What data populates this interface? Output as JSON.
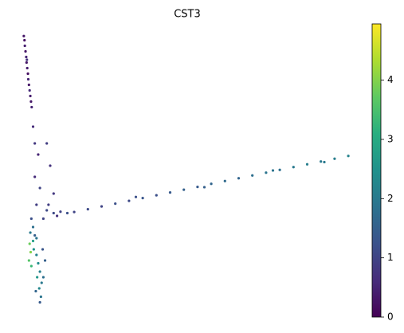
{
  "chart_data": {
    "type": "scatter",
    "title": "CST3",
    "xlim": [
      0,
      100
    ],
    "ylim": [
      0,
      100
    ],
    "x": [
      2.3,
      2.5,
      2.6,
      2.8,
      3.0,
      3.1,
      3.3,
      3.5,
      3.6,
      3.8,
      4.0,
      4.2,
      4.4,
      4.6,
      3.2,
      5,
      5.5,
      6.5,
      9,
      10,
      5.5,
      7,
      11,
      6,
      9,
      12,
      4.5,
      5,
      4.2,
      5.5,
      4.0,
      4.3,
      3.8,
      4.5,
      5.2,
      6,
      6.5,
      7,
      6.2,
      7.5,
      6.8,
      7.3,
      5.8,
      7,
      8,
      8.5,
      5,
      6,
      7.8,
      8,
      9.5,
      11,
      13,
      15,
      17,
      21,
      25,
      29,
      33,
      37,
      41,
      45,
      49,
      53,
      57,
      61,
      65,
      69,
      73,
      77,
      81,
      85,
      89,
      93,
      97,
      35,
      55,
      75,
      90
    ],
    "y": [
      98.5,
      97,
      95,
      93,
      91,
      89,
      87,
      85,
      83,
      81,
      79,
      77,
      75,
      73,
      90,
      66,
      60,
      56,
      60,
      52,
      48,
      44,
      42,
      38,
      36,
      34,
      33,
      30,
      28,
      27,
      24,
      21,
      18,
      16,
      22,
      20,
      17,
      14,
      12,
      10,
      8,
      5,
      7,
      3,
      12,
      18,
      25,
      26,
      22,
      33,
      38,
      35,
      35.5,
      35,
      35.4,
      36.4,
      37.4,
      38.4,
      39.4,
      40.4,
      41.4,
      42.4,
      43.4,
      44.4,
      45.5,
      46.5,
      47.5,
      48.5,
      49.5,
      50.5,
      51.5,
      52.5,
      53.5,
      54.5,
      55.5,
      40.8,
      44.3,
      50.3,
      53.3
    ],
    "values": [
      0.3,
      0.2,
      0.4,
      0.3,
      0.5,
      0.3,
      0.4,
      0.2,
      0.5,
      0.3,
      0.6,
      0.4,
      0.3,
      0.5,
      0.7,
      0.6,
      0.8,
      0.5,
      0.9,
      0.7,
      0.6,
      1.0,
      0.8,
      0.9,
      1.1,
      0.7,
      1.2,
      1.8,
      2.0,
      1.5,
      3.8,
      4.0,
      3.6,
      3.3,
      2.5,
      2.2,
      2.4,
      2.1,
      2.6,
      2.0,
      2.3,
      1.9,
      1.6,
      1.4,
      1.8,
      1.5,
      2.8,
      1.9,
      1.3,
      1.0,
      0.9,
      1.1,
      1.0,
      1.2,
      1.0,
      1.1,
      1.0,
      1.2,
      1.1,
      1.3,
      1.2,
      1.4,
      1.5,
      1.4,
      1.6,
      1.7,
      1.6,
      1.8,
      1.9,
      1.8,
      2.0,
      2.1,
      2.0,
      2.1,
      2.2,
      1.2,
      1.5,
      1.9,
      2.0
    ],
    "colormap": "viridis",
    "clim": [
      0,
      4.95
    ],
    "cticks": [
      0,
      1,
      2,
      3,
      4
    ]
  }
}
